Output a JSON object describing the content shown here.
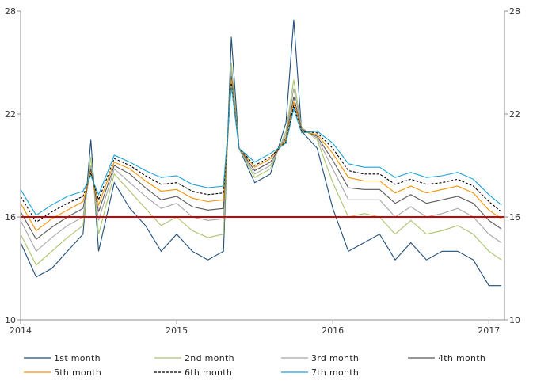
{
  "chart_data": {
    "type": "line",
    "title": "",
    "xlabel": "",
    "ylabel": "",
    "xlim": [
      2014.0,
      2017.1
    ],
    "ylim": [
      10,
      28
    ],
    "y_ticks": [
      10,
      16,
      22,
      28
    ],
    "x_ticks": [
      {
        "value": 2014,
        "label": "2014"
      },
      {
        "value": 2015,
        "label": "2015"
      },
      {
        "value": 2016,
        "label": "2016"
      },
      {
        "value": 2017,
        "label": "2017"
      }
    ],
    "grid": false,
    "legend_position": "bottom",
    "reference_line": {
      "y": 16,
      "color": "#cc0000"
    },
    "x": [
      2014.0,
      2014.1,
      2014.2,
      2014.3,
      2014.4,
      2014.45,
      2014.5,
      2014.6,
      2014.7,
      2014.8,
      2014.9,
      2015.0,
      2015.1,
      2015.2,
      2015.3,
      2015.35,
      2015.4,
      2015.5,
      2015.6,
      2015.7,
      2015.75,
      2015.8,
      2015.9,
      2016.0,
      2016.1,
      2016.2,
      2016.3,
      2016.4,
      2016.5,
      2016.6,
      2016.7,
      2016.8,
      2016.9,
      2017.0,
      2017.08
    ],
    "series": [
      {
        "name": "1st month",
        "color": "#1f4e79",
        "style": "solid",
        "values": [
          14.5,
          12.5,
          13.0,
          14.0,
          15.0,
          20.5,
          14.0,
          18.0,
          16.5,
          15.5,
          14.0,
          15.0,
          14.0,
          13.5,
          14.0,
          26.5,
          20.0,
          18.0,
          18.5,
          21.5,
          27.5,
          21.0,
          20.0,
          16.5,
          14.0,
          14.5,
          15.0,
          13.5,
          14.5,
          13.5,
          14.0,
          14.0,
          13.5,
          12.0,
          12.0
        ]
      },
      {
        "name": "2nd month",
        "color": "#a9c46c",
        "style": "solid",
        "values": [
          15.0,
          13.2,
          14.0,
          14.8,
          15.5,
          19.5,
          15.0,
          18.5,
          17.5,
          16.5,
          15.5,
          16.0,
          15.2,
          14.8,
          15.0,
          25.0,
          20.0,
          18.3,
          18.8,
          21.0,
          24.0,
          21.2,
          20.5,
          18.0,
          16.0,
          16.2,
          16.0,
          15.0,
          15.8,
          15.0,
          15.2,
          15.5,
          15.0,
          14.0,
          13.5
        ]
      },
      {
        "name": "3rd month",
        "color": "#a6a6a6",
        "style": "solid",
        "values": [
          15.8,
          14.0,
          14.8,
          15.5,
          16.0,
          19.0,
          15.8,
          18.8,
          18.0,
          17.2,
          16.5,
          16.8,
          16.0,
          15.8,
          15.9,
          24.5,
          20.0,
          18.5,
          19.0,
          20.8,
          23.5,
          21.2,
          20.6,
          18.8,
          17.0,
          17.0,
          17.0,
          16.0,
          16.6,
          16.0,
          16.2,
          16.5,
          16.0,
          15.0,
          14.5
        ]
      },
      {
        "name": "4th month",
        "color": "#595959",
        "style": "solid",
        "values": [
          16.3,
          14.7,
          15.4,
          16.0,
          16.5,
          18.8,
          16.3,
          19.0,
          18.5,
          17.7,
          17.0,
          17.2,
          16.6,
          16.4,
          16.5,
          24.2,
          20.0,
          18.7,
          19.2,
          20.6,
          23.0,
          21.1,
          20.7,
          19.3,
          17.7,
          17.6,
          17.6,
          16.8,
          17.3,
          16.8,
          17.0,
          17.2,
          16.8,
          15.8,
          15.3
        ]
      },
      {
        "name": "5th month",
        "color": "#f39200",
        "style": "solid",
        "values": [
          16.8,
          15.2,
          15.9,
          16.4,
          16.9,
          18.6,
          16.7,
          19.2,
          18.8,
          18.1,
          17.5,
          17.6,
          17.1,
          16.9,
          17.0,
          24.0,
          20.0,
          18.9,
          19.4,
          20.5,
          22.7,
          21.0,
          20.8,
          19.7,
          18.3,
          18.1,
          18.1,
          17.4,
          17.8,
          17.4,
          17.6,
          17.8,
          17.4,
          16.4,
          15.9
        ]
      },
      {
        "name": "6th month",
        "color": "#000000",
        "style": "dashed",
        "values": [
          17.2,
          15.7,
          16.3,
          16.8,
          17.2,
          18.5,
          17.0,
          19.4,
          19.0,
          18.4,
          17.9,
          18.0,
          17.5,
          17.3,
          17.4,
          23.8,
          20.0,
          19.0,
          19.5,
          20.4,
          22.5,
          21.0,
          20.9,
          20.0,
          18.7,
          18.5,
          18.5,
          17.9,
          18.2,
          17.9,
          18.0,
          18.2,
          17.8,
          16.9,
          16.3
        ]
      },
      {
        "name": "7th month",
        "color": "#1ba1d4",
        "style": "solid",
        "values": [
          17.6,
          16.1,
          16.7,
          17.2,
          17.5,
          18.4,
          17.3,
          19.6,
          19.2,
          18.7,
          18.3,
          18.4,
          17.9,
          17.7,
          17.8,
          23.6,
          20.0,
          19.2,
          19.7,
          20.3,
          22.3,
          20.9,
          21.0,
          20.3,
          19.1,
          18.9,
          18.9,
          18.3,
          18.6,
          18.3,
          18.4,
          18.6,
          18.2,
          17.3,
          16.7
        ]
      }
    ]
  }
}
